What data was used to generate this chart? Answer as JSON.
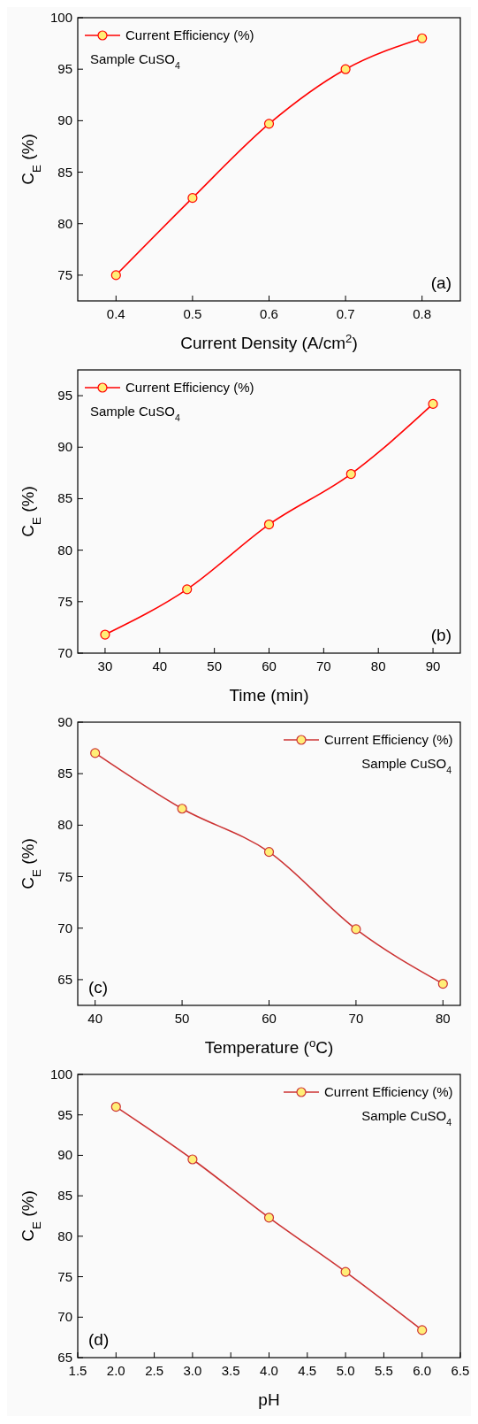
{
  "chart_data": [
    {
      "type": "line",
      "xlabel": "Current Density (A/cm$^{2}$)",
      "ylabel": "C$_{E}$ (%)",
      "x": [
        0.4,
        0.5,
        0.6,
        0.7,
        0.8
      ],
      "series": [
        {
          "name": "Current Efficiency (%)",
          "color": "#ff0000",
          "values": [
            75,
            82.5,
            89.7,
            95,
            98
          ]
        }
      ],
      "xlim": [
        0.35,
        0.85
      ],
      "xticks": [
        0.4,
        0.5,
        0.6,
        0.7,
        0.8
      ],
      "ylim": [
        72.5,
        100
      ],
      "yticks": [
        75,
        80,
        85,
        90,
        95,
        100
      ],
      "marker": "circle",
      "legend": "top left",
      "annotations": [
        "Sample CuSO$_{4}$",
        "(a)"
      ]
    },
    {
      "type": "line",
      "xlabel": "Time (min)",
      "ylabel": "C$_{E}$ (%)",
      "x": [
        30,
        45,
        60,
        75,
        90
      ],
      "series": [
        {
          "name": "Current Efficiency (%)",
          "color": "#ff0000",
          "values": [
            71.8,
            76.2,
            82.5,
            87.4,
            94.2
          ]
        }
      ],
      "xlim": [
        25,
        95
      ],
      "xticks": [
        30,
        40,
        50,
        60,
        70,
        80,
        90
      ],
      "ylim": [
        70,
        97.5
      ],
      "yticks": [
        70,
        75,
        80,
        85,
        90,
        95
      ],
      "marker": "circle",
      "legend": "top left",
      "annotations": [
        "Sample CuSO$_{4}$",
        "(b)"
      ]
    },
    {
      "type": "line",
      "xlabel": "Temperature ($^{o}$C)",
      "ylabel": "C$_{E}$ (%)",
      "x": [
        40,
        50,
        60,
        70,
        80
      ],
      "series": [
        {
          "name": "Current Efficiency (%)",
          "color": "#cc3333",
          "values": [
            87,
            81.6,
            77.4,
            69.9,
            64.6
          ]
        }
      ],
      "xlim": [
        38,
        82
      ],
      "xticks": [
        40,
        50,
        60,
        70,
        80
      ],
      "ylim": [
        62.5,
        90
      ],
      "yticks": [
        65,
        70,
        75,
        80,
        85,
        90
      ],
      "marker": "circle",
      "legend": "top right",
      "annotations": [
        "Sample CuSO$_{4}$",
        "(c)"
      ]
    },
    {
      "type": "line",
      "xlabel": "pH",
      "ylabel": "C$_{E}$ (%)",
      "x": [
        2,
        3,
        4,
        5,
        6
      ],
      "series": [
        {
          "name": "Current Efficiency (%)",
          "color": "#cc3333",
          "values": [
            96,
            89.5,
            82.3,
            75.6,
            68.4
          ]
        }
      ],
      "xlim": [
        1.5,
        6.5
      ],
      "xticks": [
        1.5,
        {
          "value": 2,
          "label": "2.0"
        },
        2.5,
        {
          "value": 3,
          "label": "3.0"
        },
        3.5,
        {
          "value": 4,
          "label": "4.0"
        },
        4.5,
        {
          "value": 5,
          "label": "5.0"
        },
        5.5,
        {
          "value": 6,
          "label": "6.0"
        },
        6.5
      ],
      "ylim": [
        65,
        100
      ],
      "yticks": [
        65,
        70,
        75,
        80,
        85,
        90,
        95,
        100
      ],
      "marker": "circle",
      "legend": "top right",
      "annotations": [
        "Sample CuSO$_{4}$",
        "(d)"
      ]
    }
  ]
}
